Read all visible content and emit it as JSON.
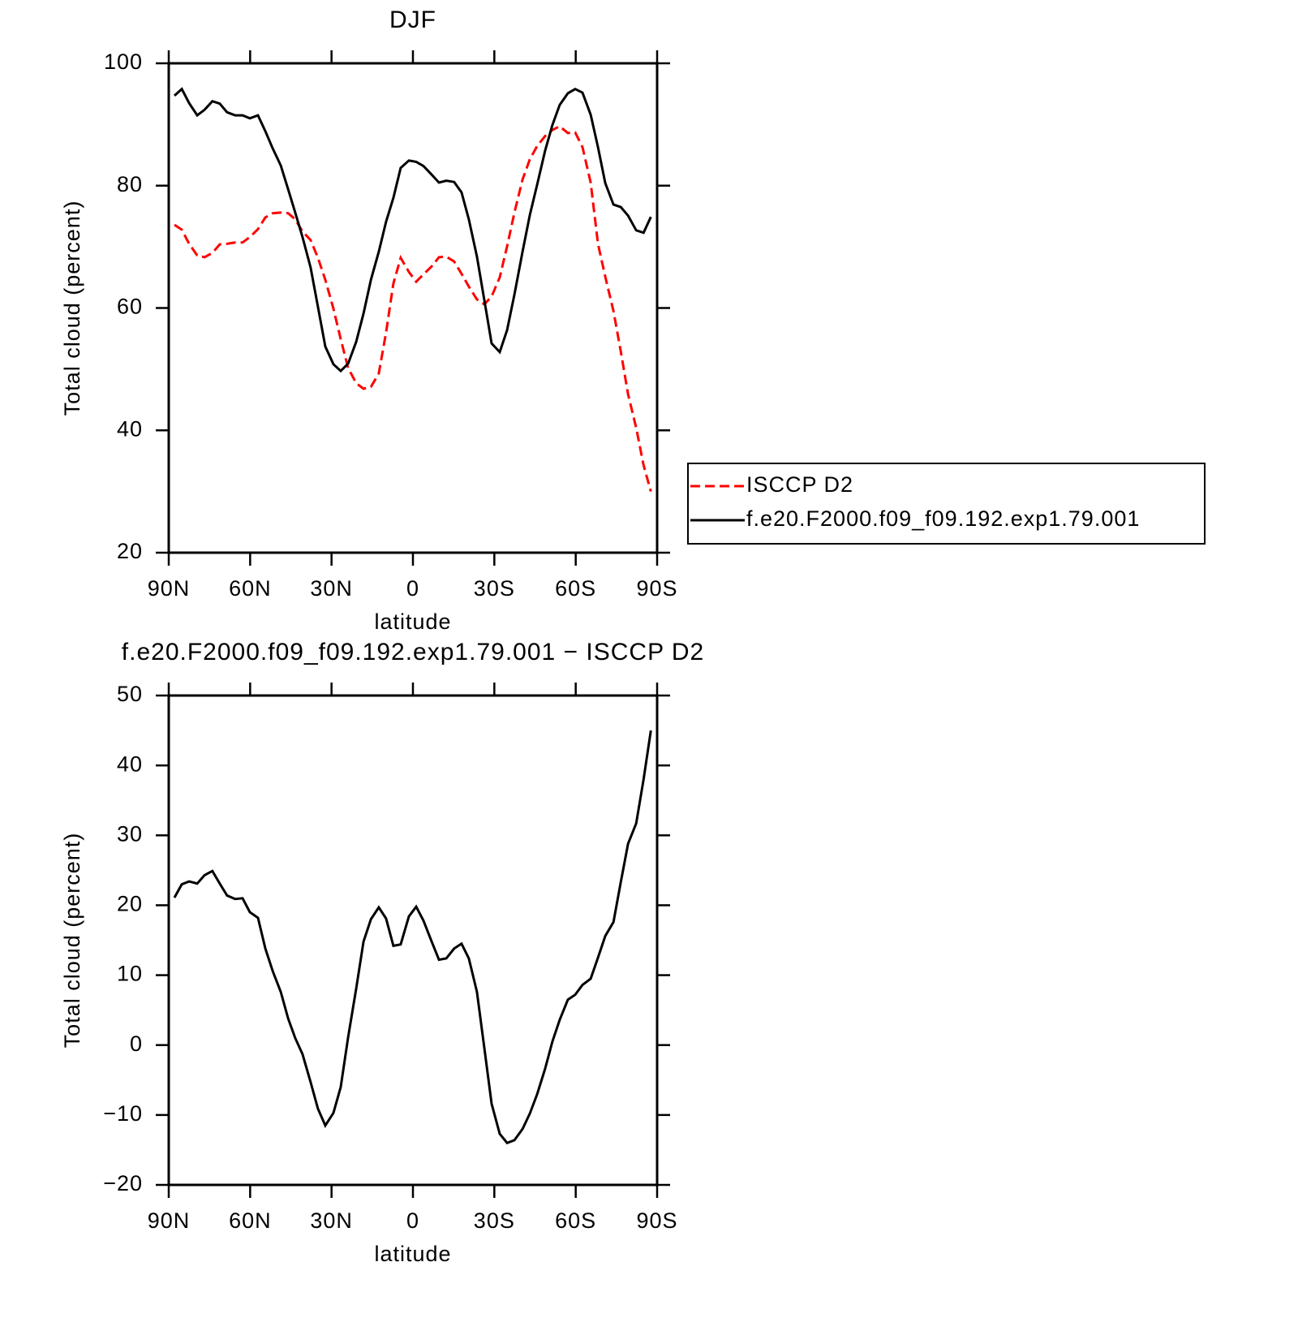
{
  "chart_data": [
    {
      "type": "line",
      "title": "DJF",
      "xlabel": "latitude",
      "ylabel": "Total cloud (percent)",
      "x": [
        87.9,
        85.2,
        82.5,
        79.5,
        76.8,
        73.9,
        71.2,
        68.5,
        65.5,
        62.8,
        60.1,
        57.1,
        54.4,
        51.7,
        48.7,
        46.0,
        43.4,
        40.7,
        37.7,
        35.0,
        32.3,
        29.3,
        26.6,
        23.9,
        20.9,
        18.2,
        15.5,
        12.6,
        9.9,
        7.2,
        4.5,
        1.5,
        -1.2,
        -3.9,
        -6.9,
        -9.6,
        -12.3,
        -15.2,
        -17.9,
        -20.6,
        -23.6,
        -26.3,
        -29.0,
        -32.0,
        -34.7,
        -37.4,
        -40.4,
        -43.1,
        -45.8,
        -48.7,
        -51.4,
        -54.1,
        -57.1,
        -59.8,
        -62.5,
        -65.5,
        -68.2,
        -70.9,
        -73.9,
        -76.6,
        -79.3,
        -82.3,
        -85.0,
        -87.7
      ],
      "series": [
        {
          "name": "ISCCP D2",
          "color": "#ff0000",
          "linestyle": "dashed",
          "values": [
            73.6,
            72.8,
            70.5,
            68.6,
            68.3,
            69.0,
            70.4,
            70.5,
            70.7,
            70.7,
            71.6,
            72.9,
            74.8,
            75.5,
            75.6,
            75.5,
            74.5,
            72.5,
            71.1,
            68.2,
            64.6,
            59.9,
            54.9,
            50.2,
            47.7,
            46.8,
            47.1,
            49.3,
            56.0,
            64.0,
            68.2,
            65.9,
            64.3,
            65.5,
            66.8,
            68.3,
            68.4,
            67.6,
            65.6,
            63.5,
            61.4,
            60.6,
            61.9,
            65.0,
            70.1,
            75.6,
            81.0,
            84.3,
            86.5,
            88.1,
            89.1,
            89.7,
            88.6,
            88.7,
            86.3,
            80.5,
            70.5,
            65.1,
            59.5,
            52.9,
            45.9,
            40.4,
            34.3,
            30.0
          ]
        },
        {
          "name": "f.e20.F2000.f09_f09.192.exp1.79.001",
          "color": "#000000",
          "linestyle": "solid",
          "values": [
            94.7,
            95.8,
            93.5,
            91.5,
            92.4,
            93.8,
            93.4,
            92.0,
            91.5,
            91.5,
            91.0,
            91.5,
            88.9,
            86.1,
            83.3,
            79.4,
            75.6,
            71.6,
            66.6,
            60.2,
            53.7,
            50.8,
            49.7,
            50.9,
            54.5,
            59.1,
            64.6,
            69.2,
            74.1,
            78.0,
            82.9,
            84.1,
            83.9,
            83.2,
            81.8,
            80.5,
            80.8,
            80.6,
            78.9,
            74.5,
            68.4,
            61.3,
            54.2,
            52.8,
            56.4,
            62.2,
            69.2,
            75.2,
            80.2,
            85.7,
            89.9,
            93.2,
            95.1,
            95.8,
            95.2,
            91.6,
            86.3,
            80.4,
            76.9,
            76.5,
            75.1,
            72.7,
            72.3,
            74.9
          ]
        }
      ],
      "xlim": [
        90,
        -90
      ],
      "xticks": [
        {
          "value": 90,
          "label": "90N"
        },
        {
          "value": 60,
          "label": "60N"
        },
        {
          "value": 30,
          "label": "30N"
        },
        0,
        {
          "value": -30,
          "label": "30S"
        },
        {
          "value": -60,
          "label": "60S"
        },
        {
          "value": -90,
          "label": "90S"
        }
      ],
      "ylim": [
        20,
        100
      ],
      "yticks": [
        20,
        40,
        60,
        80,
        100
      ],
      "legend": "right"
    },
    {
      "type": "line",
      "title": "f.e20.F2000.f09_f09.192.exp1.79.001 − ISCCP D2",
      "xlabel": "latitude",
      "ylabel": "Total cloud (percent)",
      "x": [
        87.9,
        85.2,
        82.5,
        79.5,
        76.8,
        73.9,
        71.2,
        68.5,
        65.5,
        62.8,
        60.1,
        57.1,
        54.4,
        51.7,
        48.7,
        46.0,
        43.4,
        40.7,
        37.7,
        35.0,
        32.3,
        29.3,
        26.6,
        23.9,
        20.9,
        18.2,
        15.5,
        12.6,
        9.9,
        7.2,
        4.5,
        1.5,
        -1.2,
        -3.9,
        -6.9,
        -9.6,
        -12.3,
        -15.2,
        -17.9,
        -20.6,
        -23.6,
        -26.3,
        -29.0,
        -32.0,
        -34.7,
        -37.4,
        -40.4,
        -43.1,
        -45.8,
        -48.7,
        -51.4,
        -54.1,
        -57.1,
        -59.8,
        -62.5,
        -65.5,
        -68.2,
        -70.9,
        -73.9,
        -76.6,
        -79.3,
        -82.3,
        -85.0,
        -87.7
      ],
      "values": [
        21.1,
        23.0,
        23.4,
        23.1,
        24.3,
        24.9,
        23.1,
        21.4,
        20.9,
        21.0,
        19.0,
        18.2,
        13.8,
        10.6,
        7.6,
        3.8,
        1.0,
        -1.3,
        -5.3,
        -9.1,
        -11.5,
        -9.7,
        -6.0,
        1.1,
        8.1,
        14.8,
        18.0,
        19.7,
        18.1,
        14.2,
        14.4,
        18.4,
        19.8,
        17.8,
        14.8,
        12.2,
        12.4,
        13.8,
        14.5,
        12.4,
        7.6,
        -0.4,
        -8.4,
        -12.7,
        -14.0,
        -13.6,
        -12.0,
        -9.8,
        -7.0,
        -3.4,
        0.5,
        3.6,
        6.5,
        7.2,
        8.6,
        9.5,
        12.5,
        15.6,
        17.6,
        23.3,
        28.8,
        31.7,
        38.0,
        45.0
      ],
      "color": "#000000",
      "xlim": [
        90,
        -90
      ],
      "xticks": [
        {
          "value": 90,
          "label": "90N"
        },
        {
          "value": 60,
          "label": "60N"
        },
        {
          "value": 30,
          "label": "30N"
        },
        0,
        {
          "value": -30,
          "label": "30S"
        },
        {
          "value": -60,
          "label": "60S"
        },
        {
          "value": -90,
          "label": "90S"
        }
      ],
      "ylim": [
        -20,
        50
      ],
      "yticks": [
        {
          "value": -20,
          "label": "−20"
        },
        {
          "value": -10,
          "label": "−10"
        },
        0,
        10,
        20,
        30,
        40,
        50
      ]
    }
  ]
}
